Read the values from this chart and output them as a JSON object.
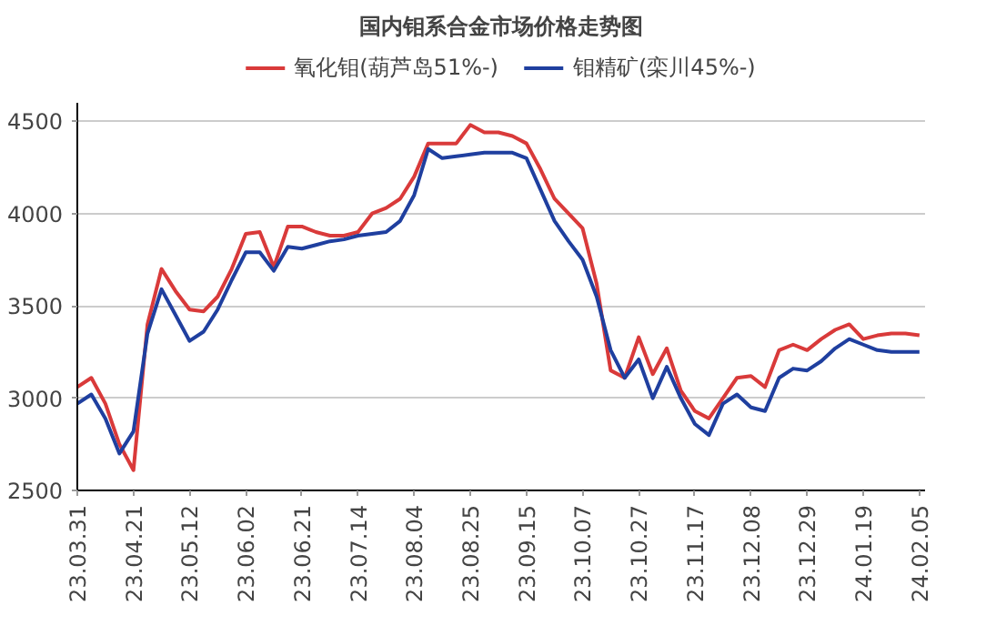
{
  "chart_data": {
    "type": "line",
    "title": "国内钼系合金市场价格走势图",
    "categories": [
      "23.03.31",
      null,
      null,
      null,
      "23.04.21",
      null,
      null,
      null,
      "23.05.12",
      null,
      null,
      null,
      "23.06.02",
      null,
      null,
      null,
      "23.06.21",
      null,
      null,
      null,
      "23.07.14",
      null,
      null,
      null,
      "23.08.04",
      null,
      null,
      null,
      "23.08.25",
      null,
      null,
      null,
      "23.09.15",
      null,
      null,
      null,
      "23.10.07",
      null,
      null,
      null,
      "23.10.27",
      null,
      null,
      null,
      "23.11.17",
      null,
      null,
      null,
      "23.12.08",
      null,
      null,
      null,
      "23.12.29",
      null,
      null,
      null,
      "24.01.19",
      null,
      null,
      null,
      "24.02.05"
    ],
    "series": [
      {
        "name": "氧化钼(葫芦岛51%-)",
        "color": "#d93a3a",
        "values": [
          3060,
          3110,
          2970,
          2750,
          2610,
          3400,
          3700,
          3580,
          3480,
          3470,
          3550,
          3700,
          3890,
          3900,
          3710,
          3930,
          3930,
          3900,
          3880,
          3880,
          3900,
          4000,
          4030,
          4080,
          4200,
          4380,
          4380,
          4380,
          4480,
          4440,
          4440,
          4420,
          4380,
          4240,
          4080,
          4000,
          3920,
          3620,
          3150,
          3110,
          3330,
          3130,
          3270,
          3040,
          2930,
          2890,
          3000,
          3110,
          3120,
          3060,
          3260,
          3290,
          3260,
          3320,
          3370,
          3400,
          3320,
          3340,
          3350,
          3350,
          3340
        ]
      },
      {
        "name": "钼精矿(栾川45%-)",
        "color": "#1f3f9f",
        "values": [
          2970,
          3020,
          2890,
          2700,
          2820,
          3350,
          3590,
          3450,
          3310,
          3360,
          3480,
          3640,
          3790,
          3790,
          3690,
          3820,
          3810,
          3830,
          3850,
          3860,
          3880,
          3890,
          3900,
          3960,
          4100,
          4350,
          4300,
          4310,
          4320,
          4330,
          4330,
          4330,
          4300,
          4130,
          3960,
          3850,
          3750,
          3550,
          3260,
          3110,
          3210,
          3000,
          3170,
          3000,
          2860,
          2800,
          2970,
          3020,
          2950,
          2930,
          3110,
          3160,
          3150,
          3200,
          3270,
          3320,
          3290,
          3260,
          3250,
          3250,
          3250
        ]
      }
    ],
    "ylim": [
      2500,
      4600
    ],
    "yticks": [
      2500,
      3000,
      3500,
      4000,
      4500
    ],
    "grid": "y",
    "legend": "top"
  }
}
